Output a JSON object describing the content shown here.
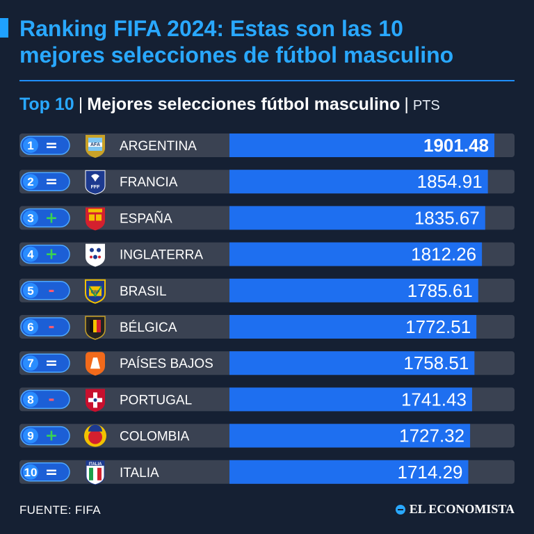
{
  "header": {
    "title_line1": "Ranking FIFA 2024: Estas son las 10",
    "title_line2": "mejores selecciones de fútbol masculino",
    "subtitle_top": "Top 10",
    "subtitle_sep": "|",
    "subtitle_main": "Mejores selecciones fútbol masculino",
    "subtitle_unit": "PTS"
  },
  "footer": {
    "source": "FUENTE: FIFA",
    "brand": "EL ECONOMISTA"
  },
  "colors": {
    "background": "#152033",
    "accent": "#29a8ff",
    "bar": "#1e6ff0",
    "track": "#3a4252",
    "up": "#39d353",
    "down": "#ff5a6e",
    "same": "#ffffff"
  },
  "chart_data": {
    "type": "bar",
    "orientation": "horizontal",
    "ylim": [
      0,
      1950
    ],
    "categories": [
      "ARGENTINA",
      "FRANCIA",
      "ESPAÑA",
      "INGLATERRA",
      "BRASIL",
      "BÉLGICA",
      "PAÍSES BAJOS",
      "PORTUGAL",
      "COLOMBIA",
      "ITALIA"
    ],
    "ranks": [
      "1",
      "2",
      "3",
      "4",
      "5",
      "6",
      "7",
      "8",
      "9",
      "10"
    ],
    "changes": [
      "=",
      "=",
      "+",
      "+",
      "-",
      "-",
      "=",
      "-",
      "+",
      "="
    ],
    "values": [
      1901.48,
      1854.91,
      1835.67,
      1812.26,
      1785.61,
      1772.51,
      1758.51,
      1741.43,
      1727.32,
      1714.29
    ],
    "value_labels": [
      "1901.48",
      "1854.91",
      "1835.67",
      "1812.26",
      "1785.61",
      "1772.51",
      "1758.51",
      "1741.43",
      "1727.32",
      "1714.29"
    ],
    "crests": [
      "argentina-crest-icon",
      "france-crest-icon",
      "spain-crest-icon",
      "england-crest-icon",
      "brazil-crest-icon",
      "belgium-crest-icon",
      "netherlands-crest-icon",
      "portugal-crest-icon",
      "colombia-crest-icon",
      "italy-crest-icon"
    ],
    "crest_texts": [
      "AFA",
      "FFF",
      "",
      "",
      "CBF",
      "",
      "",
      "",
      "",
      "ITALIA"
    ]
  }
}
